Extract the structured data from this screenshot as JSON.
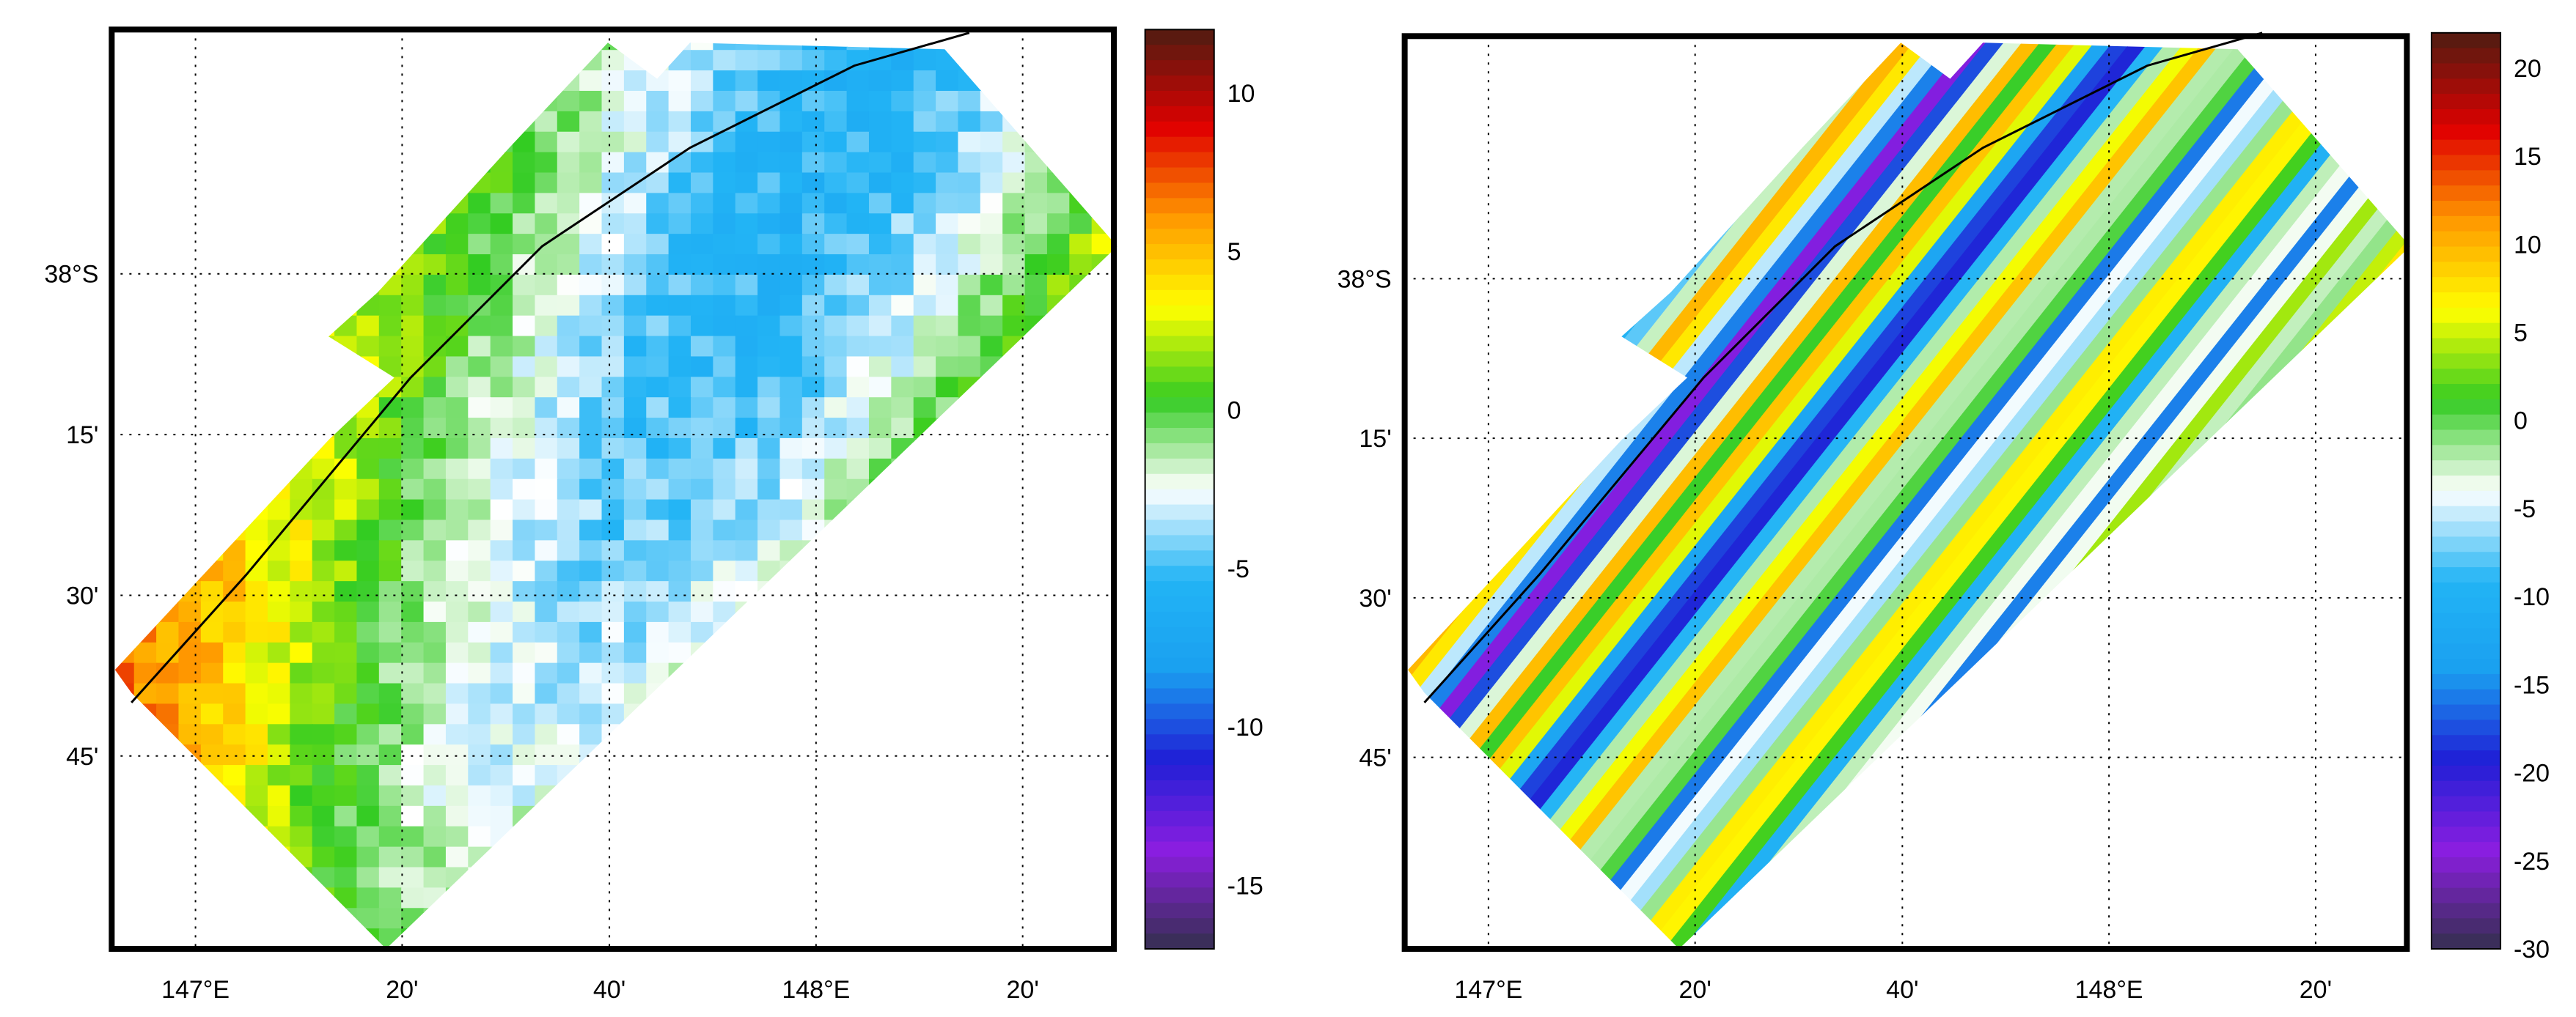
{
  "maps": [
    {
      "name": "left",
      "lat_labels": [
        {
          "lat": -38.0,
          "text": "38",
          "suffix": "S",
          "deg": true
        },
        {
          "lat": -38.25,
          "text": "15'"
        },
        {
          "lat": -38.5,
          "text": "30'"
        },
        {
          "lat": -38.75,
          "text": "45'"
        }
      ],
      "lon_labels": [
        {
          "lon": 147.0,
          "text": "147",
          "suffix": "E",
          "deg": true
        },
        {
          "lon": 147.333,
          "text": "20'"
        },
        {
          "lon": 147.667,
          "text": "40'"
        },
        {
          "lon": 148.0,
          "text": "148",
          "suffix": "E",
          "deg": true
        },
        {
          "lon": 148.333,
          "text": "20'"
        }
      ],
      "colorbar": {
        "min": -17,
        "max": 12,
        "ticks": [
          {
            "v": 10,
            "text": "10"
          },
          {
            "v": 5,
            "text": "5"
          },
          {
            "v": 0,
            "text": "0"
          },
          {
            "v": -5,
            "text": "-5"
          },
          {
            "v": -10,
            "text": "-10"
          },
          {
            "v": -15,
            "text": "-15"
          }
        ]
      },
      "style": "smooth"
    },
    {
      "name": "right",
      "lat_labels": [
        {
          "lat": -38.0,
          "text": "38",
          "suffix": "S",
          "deg": true
        },
        {
          "lat": -38.25,
          "text": "15'"
        },
        {
          "lat": -38.5,
          "text": "30'"
        },
        {
          "lat": -38.75,
          "text": "45'"
        }
      ],
      "lon_labels": [
        {
          "lon": 147.0,
          "text": "147",
          "suffix": "E",
          "deg": true
        },
        {
          "lon": 147.333,
          "text": "20'"
        },
        {
          "lon": 147.667,
          "text": "40'"
        },
        {
          "lon": 148.0,
          "text": "148",
          "suffix": "E",
          "deg": true
        },
        {
          "lon": 148.333,
          "text": "20'"
        }
      ],
      "colorbar": {
        "min": -30,
        "max": 22,
        "ticks": [
          {
            "v": 20,
            "text": "20"
          },
          {
            "v": 15,
            "text": "15"
          },
          {
            "v": 10,
            "text": "10"
          },
          {
            "v": 5,
            "text": "5"
          },
          {
            "v": 0,
            "text": "0"
          },
          {
            "v": -5,
            "text": "-5"
          },
          {
            "v": -10,
            "text": "-10"
          },
          {
            "v": -15,
            "text": "-15"
          },
          {
            "v": -20,
            "text": "-20"
          },
          {
            "v": -25,
            "text": "-25"
          },
          {
            "v": -30,
            "text": "-30"
          }
        ]
      },
      "style": "striped"
    }
  ],
  "colors": {
    "jet": [
      "#3b2e5a",
      "#8b1ee0",
      "#1f1fd6",
      "#1aa0f0",
      "#22b4f5",
      "#ffffff",
      "#33cc22",
      "#ffff00",
      "#ff9900",
      "#e00000",
      "#5a1a10"
    ],
    "frame": "#000000",
    "grid": "#000000",
    "track": "#000000"
  }
}
